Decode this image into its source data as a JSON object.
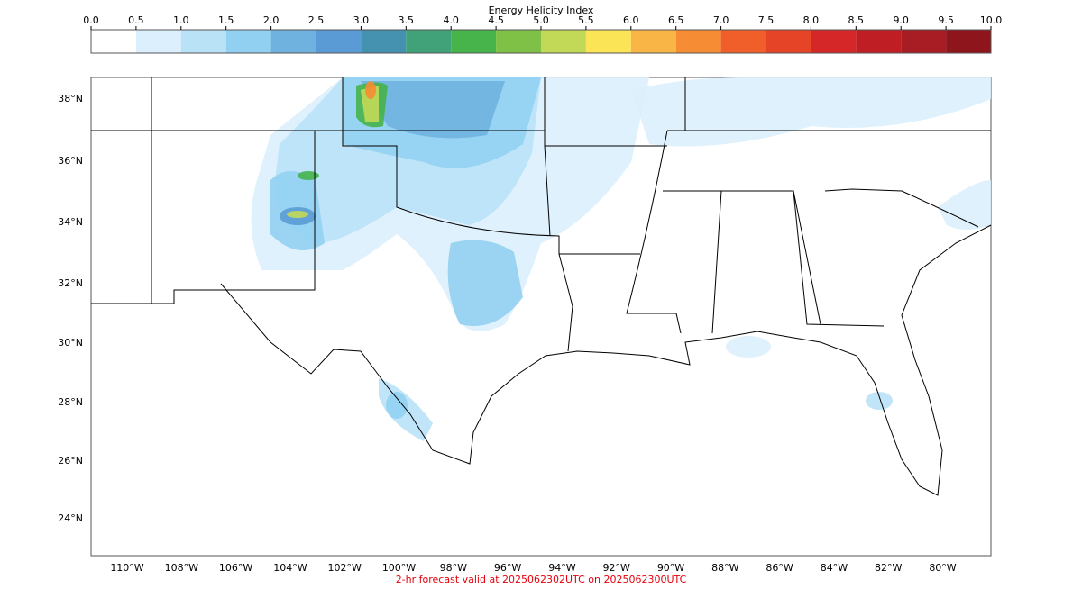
{
  "colorbar": {
    "title": "Energy Helicity Index",
    "ticks": [
      {
        "value": 0,
        "label": "0.0"
      },
      {
        "value": 0.5,
        "label": "0.5"
      },
      {
        "value": 1,
        "label": "1.0"
      },
      {
        "value": 1.5,
        "label": "1.5"
      },
      {
        "value": 2,
        "label": "2.0"
      },
      {
        "value": 2.5,
        "label": "2.5"
      },
      {
        "value": 3,
        "label": "3.0"
      },
      {
        "value": 3.5,
        "label": "3.5"
      },
      {
        "value": 4,
        "label": "4.0"
      },
      {
        "value": 4.5,
        "label": "4.5"
      },
      {
        "value": 5,
        "label": "5.0"
      },
      {
        "value": 5.5,
        "label": "5.5"
      },
      {
        "value": 6,
        "label": "6.0"
      },
      {
        "value": 6.5,
        "label": "6.5"
      },
      {
        "value": 7,
        "label": "7.0"
      },
      {
        "value": 7.5,
        "label": "7.5"
      },
      {
        "value": 8,
        "label": "8.0"
      },
      {
        "value": 8.5,
        "label": "8.5"
      },
      {
        "value": 9,
        "label": "9.0"
      },
      {
        "value": 9.5,
        "label": "9.5"
      },
      {
        "value": 10,
        "label": "10.0"
      }
    ],
    "colors": [
      "#ffffff",
      "#dbeffc",
      "#b9e2f7",
      "#92d0f1",
      "#6fb2e0",
      "#5a9bd5",
      "#4591b0",
      "#41a27a",
      "#46b34b",
      "#7fc146",
      "#c2d957",
      "#fbe556",
      "#f9b546",
      "#f68c34",
      "#f05e2a",
      "#e54427",
      "#d62728",
      "#be1e24",
      "#a81c23",
      "#8e151c"
    ]
  },
  "map": {
    "lat_labels": [
      "38°N",
      "36°N",
      "34°N",
      "32°N",
      "30°N",
      "28°N",
      "26°N",
      "24°N"
    ],
    "lon_labels": [
      "110°W",
      "108°W",
      "106°W",
      "104°W",
      "102°W",
      "100°W",
      "98°W",
      "96°W",
      "94°W",
      "92°W",
      "90°W",
      "88°W",
      "86°W",
      "84°W",
      "82°W",
      "80°W"
    ]
  },
  "footer": "2-hr forecast valid at 2025062302UTC on 2025062300UTC"
}
